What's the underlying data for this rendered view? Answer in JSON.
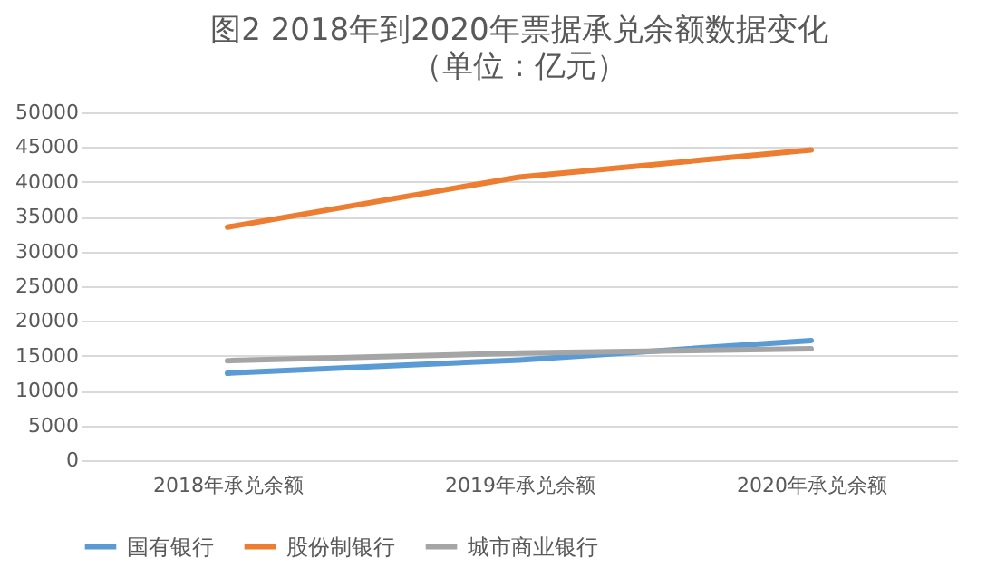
{
  "chart_data": {
    "type": "line",
    "title": "图2  2018年到2020年票据承兑余额数据变化",
    "subtitle": "（单位：亿元）",
    "categories": [
      "2018年承兑余额",
      "2019年承兑余额",
      "2020年承兑余额"
    ],
    "series": [
      {
        "name": "国有银行",
        "color": "#5b9bd5",
        "values": [
          12500,
          14400,
          17200
        ]
      },
      {
        "name": "股份制银行",
        "color": "#ed7d31",
        "values": [
          33500,
          40700,
          44600
        ]
      },
      {
        "name": "城市商业银行",
        "color": "#a5a5a5",
        "values": [
          14300,
          15400,
          16000
        ]
      }
    ],
    "ylim": [
      0,
      50000
    ],
    "yticks": [
      0,
      5000,
      10000,
      15000,
      20000,
      25000,
      30000,
      35000,
      40000,
      45000,
      50000
    ],
    "grid": "y",
    "legend": "bottom",
    "marker": "none",
    "line_style": "solid"
  }
}
